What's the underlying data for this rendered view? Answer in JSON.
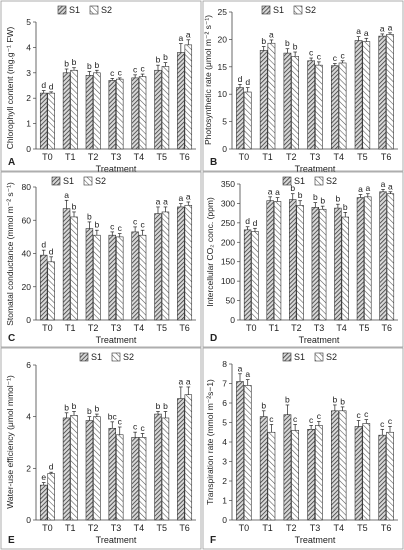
{
  "legend": {
    "s1": "S1",
    "s2": "S2"
  },
  "chart_data": [
    {
      "panel": "A",
      "type": "bar",
      "categories": [
        "T0",
        "T1",
        "T2",
        "T3",
        "T4",
        "T5",
        "T6"
      ],
      "ylabel": "Chlorophyll content (mg.g⁻¹ FW)",
      "xlabel": "Treatment",
      "ylim": [
        0,
        5
      ],
      "yticks": [
        "0",
        "1",
        "2",
        "3",
        "4",
        "5"
      ],
      "series": [
        {
          "name": "S1",
          "values": [
            2.2,
            3.0,
            2.9,
            2.7,
            2.8,
            3.1,
            3.8
          ],
          "errors": [
            0.1,
            0.15,
            0.15,
            0.08,
            0.12,
            0.2,
            0.35
          ],
          "letters": [
            "d",
            "b",
            "b",
            "c",
            "c",
            "b",
            "a"
          ]
        },
        {
          "name": "S2",
          "values": [
            2.2,
            3.1,
            3.0,
            2.75,
            2.85,
            3.25,
            4.1
          ],
          "errors": [
            0.05,
            0.1,
            0.1,
            0.05,
            0.1,
            0.15,
            0.2
          ],
          "letters": [
            "d",
            "b",
            "b",
            "c",
            "c",
            "b",
            "a"
          ]
        }
      ]
    },
    {
      "panel": "B",
      "type": "bar",
      "categories": [
        "T0",
        "T1",
        "T2",
        "T3",
        "T4",
        "T5",
        "T6"
      ],
      "ylabel": "Photosynthetic rate (μmol m⁻² s⁻¹)",
      "xlabel": "Treatment",
      "ylim": [
        0,
        25
      ],
      "yticks": [
        "0",
        "5",
        "10",
        "15",
        "20",
        "25"
      ],
      "series": [
        {
          "name": "S1",
          "values": [
            11.2,
            18.0,
            17.5,
            16.1,
            15.2,
            19.8,
            20.6
          ],
          "errors": [
            0.6,
            0.7,
            0.8,
            0.5,
            0.4,
            0.7,
            0.4
          ],
          "letters": [
            "d",
            "b",
            "b",
            "c",
            "c",
            "a",
            "a"
          ]
        },
        {
          "name": "S2",
          "values": [
            10.4,
            19.3,
            16.9,
            15.3,
            15.7,
            19.6,
            20.9
          ],
          "errors": [
            0.8,
            0.6,
            0.8,
            0.6,
            0.4,
            0.6,
            0.3
          ],
          "letters": [
            "d",
            "a",
            "b",
            "c",
            "c",
            "a",
            "a"
          ]
        }
      ]
    },
    {
      "panel": "C",
      "type": "bar",
      "categories": [
        "T0",
        "T1",
        "T2",
        "T3",
        "T4",
        "T5",
        "T6"
      ],
      "ylabel": "Stomatal conductance (mmol m⁻² s⁻¹)",
      "xlabel": "Treatment",
      "ylim": [
        0,
        80
      ],
      "yticks": [
        "0",
        "20",
        "40",
        "60",
        "80"
      ],
      "series": [
        {
          "name": "S1",
          "values": [
            39,
            67,
            55,
            51,
            53,
            64,
            68
          ],
          "errors": [
            3,
            5,
            4,
            2,
            3,
            4,
            2
          ],
          "letters": [
            "d",
            "a",
            "b",
            "c",
            "c",
            "a",
            "a"
          ]
        },
        {
          "name": "S2",
          "values": [
            35,
            62,
            51,
            50,
            51,
            65,
            69
          ],
          "errors": [
            3,
            3,
            3,
            2,
            3,
            3,
            2
          ],
          "letters": [
            "d",
            "b",
            "b",
            "c",
            "c",
            "a",
            "a"
          ]
        }
      ]
    },
    {
      "panel": "D",
      "type": "bar",
      "categories": [
        "T0",
        "T1",
        "T2",
        "T3",
        "T4",
        "T5",
        "T6"
      ],
      "ylabel": "Intercellular CO₂ conc. (ppm)",
      "xlabel": "Treatment",
      "ylim": [
        0,
        350
      ],
      "yticks": [
        "0",
        "50",
        "100",
        "150",
        "200",
        "250",
        "300",
        "350"
      ],
      "series": [
        {
          "name": "S1",
          "values": [
            232,
            307,
            310,
            290,
            288,
            315,
            330
          ],
          "errors": [
            8,
            10,
            15,
            12,
            10,
            8,
            6
          ],
          "letters": [
            "d",
            "a",
            "b",
            "b",
            "b",
            "a",
            "a"
          ]
        },
        {
          "name": "S2",
          "values": [
            228,
            305,
            295,
            285,
            265,
            317,
            325
          ],
          "errors": [
            8,
            10,
            12,
            8,
            12,
            8,
            5
          ],
          "letters": [
            "d",
            "a",
            "b",
            "b",
            "b",
            "a",
            "a"
          ]
        }
      ]
    },
    {
      "panel": "E",
      "type": "bar",
      "categories": [
        "T0",
        "T1",
        "T2",
        "T3",
        "T4",
        "T5",
        "T6"
      ],
      "ylabel": "Water-use efficiency (μmol mmol⁻¹)",
      "xlabel": "Treatment",
      "ylim": [
        0,
        6
      ],
      "yticks": [
        "0",
        "2",
        "4",
        "6"
      ],
      "series": [
        {
          "name": "S1",
          "values": [
            1.35,
            3.95,
            3.85,
            3.55,
            3.2,
            4.1,
            4.7
          ],
          "errors": [
            0.1,
            0.2,
            0.15,
            0.25,
            0.2,
            0.1,
            0.45
          ],
          "letters": [
            "e",
            "b",
            "b",
            "bc",
            "c",
            "b",
            "a"
          ]
        },
        {
          "name": "S2",
          "values": [
            1.8,
            4.05,
            4.0,
            3.3,
            3.2,
            3.95,
            4.85
          ],
          "errors": [
            0.05,
            0.15,
            0.1,
            0.3,
            0.15,
            0.25,
            0.3
          ],
          "letters": [
            "d",
            "b",
            "b",
            "c",
            "c",
            "b",
            "a"
          ]
        }
      ]
    },
    {
      "panel": "F",
      "type": "bar",
      "categories": [
        "T0",
        "T1",
        "T2",
        "T3",
        "T4",
        "T5",
        "T6"
      ],
      "ylabel": "Transpiration rate (mmol m⁻²s−1)",
      "xlabel": "Treatment",
      "ylim": [
        0,
        8
      ],
      "yticks": [
        "0",
        "1",
        "2",
        "3",
        "4",
        "5",
        "6",
        "7",
        "8"
      ],
      "series": [
        {
          "name": "S1",
          "values": [
            7.1,
            5.3,
            5.4,
            4.65,
            5.6,
            4.8,
            4.35
          ],
          "errors": [
            0.4,
            0.3,
            0.5,
            0.2,
            0.3,
            0.3,
            0.3
          ],
          "letters": [
            "a",
            "b",
            "b",
            "c",
            "b",
            "c",
            "c"
          ]
        },
        {
          "name": "S2",
          "values": [
            6.9,
            4.5,
            4.6,
            4.85,
            5.6,
            4.95,
            4.5
          ],
          "errors": [
            0.3,
            0.4,
            0.3,
            0.2,
            0.2,
            0.2,
            0.3
          ],
          "letters": [
            "a",
            "c",
            "c",
            "c",
            "b",
            "c",
            "c"
          ]
        }
      ]
    }
  ]
}
